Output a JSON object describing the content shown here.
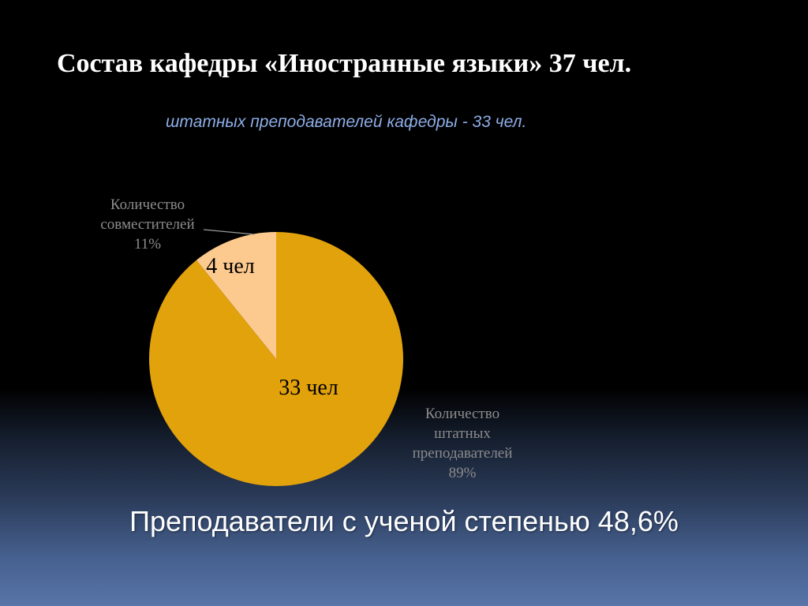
{
  "slide": {
    "title": "Состав кафедры «Иностранные языки» 37 чел.",
    "subtitle": "штатных преподавателей кафедры  - 33 чел.",
    "footer": "Преподаватели  с ученой степенью 48,6%"
  },
  "chart_data": {
    "type": "pie",
    "slices": [
      {
        "name": "Количество совместителей",
        "value": 4,
        "value_label": "4 чел",
        "category_lines": [
          "Количество",
          "совместителей",
          "11%"
        ],
        "percent": 11,
        "color": "#fcc98e"
      },
      {
        "name": "Количество штатных преподавателей",
        "value": 33,
        "value_label": "33 чел",
        "category_lines": [
          "Количество",
          "штатных",
          "преподавателей",
          "89%"
        ],
        "percent": 89,
        "color": "#e2a20c"
      }
    ]
  }
}
